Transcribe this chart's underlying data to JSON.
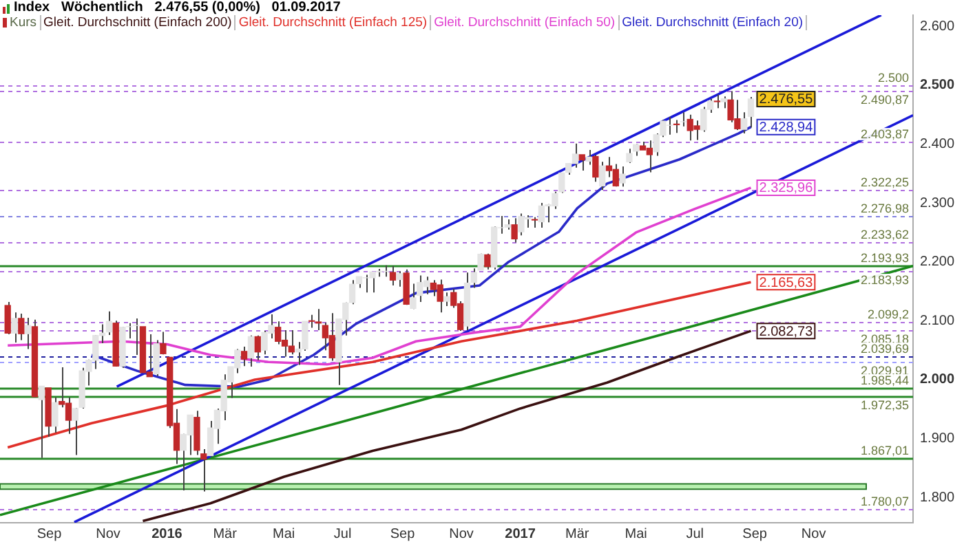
{
  "chart_data": {
    "type": "candlestick",
    "title": "Index   Wöchentlich   2.476,55 (0,00%)   01.09.2017",
    "legend": "top left",
    "grid": false,
    "xlim": [
      "2015-07-12",
      "2018-02-12"
    ],
    "xticks": [
      {
        "value": "2015-09",
        "label": "Sep"
      },
      {
        "value": "2015-11",
        "label": "Nov"
      },
      {
        "value": "2016",
        "label": "2016"
      },
      {
        "value": "2016-03",
        "label": "Mär"
      },
      {
        "value": "2016-05",
        "label": "Mai"
      },
      {
        "value": "2016-07",
        "label": "Jul"
      },
      {
        "value": "2016-09",
        "label": "Sep"
      },
      {
        "value": "2016-11",
        "label": "Nov"
      },
      {
        "value": "2017",
        "label": "2017"
      },
      {
        "value": "2017-03",
        "label": "Mär"
      },
      {
        "value": "2017-05",
        "label": "Mai"
      },
      {
        "value": "2017-07",
        "label": "Jul"
      },
      {
        "value": "2017-09",
        "label": "Sep"
      },
      {
        "value": "2017-11",
        "label": "Nov"
      }
    ],
    "ylim": [
      1757,
      2619
    ],
    "yticks": [
      {
        "value": 1800,
        "label": "1.800"
      },
      {
        "value": 1900,
        "label": "1.900"
      },
      {
        "value": 2000,
        "label": "2.000"
      },
      {
        "value": 2100,
        "label": "2.100"
      },
      {
        "value": 2200,
        "label": "2.200"
      },
      {
        "value": 2300,
        "label": "2.300"
      },
      {
        "value": 2400,
        "label": "2.400"
      },
      {
        "value": 2500,
        "label": "2.500"
      },
      {
        "value": 2600,
        "label": "2.600"
      }
    ],
    "annotations": [
      {
        "text": "2.476,55",
        "x": "2017-08-28",
        "y": 2476.55
      }
    ],
    "series": [
      {
        "type": "candlestick",
        "name": "Kurs",
        "x": [
          "2015-07-20",
          "2015-07-27",
          "2015-08-03",
          "2015-08-10",
          "2015-08-17",
          "2015-08-24",
          "2015-08-31",
          "2015-09-07",
          "2015-09-14",
          "2015-09-21",
          "2015-09-28",
          "2015-10-05",
          "2015-10-12",
          "2015-10-19",
          "2015-10-26",
          "2015-11-02",
          "2015-11-09",
          "2015-11-16",
          "2015-11-23",
          "2015-11-30",
          "2015-12-07",
          "2015-12-14",
          "2015-12-21",
          "2015-12-28",
          "2016-01-04",
          "2016-01-11",
          "2016-01-18",
          "2016-01-25",
          "2016-02-01",
          "2016-02-08",
          "2016-02-15",
          "2016-02-22",
          "2016-02-29",
          "2016-03-07",
          "2016-03-14",
          "2016-03-21",
          "2016-03-28",
          "2016-04-04",
          "2016-04-11",
          "2016-04-18",
          "2016-04-25",
          "2016-05-02",
          "2016-05-09",
          "2016-05-16",
          "2016-05-23",
          "2016-05-30",
          "2016-06-06",
          "2016-06-13",
          "2016-06-20",
          "2016-06-27",
          "2016-07-04",
          "2016-07-11",
          "2016-07-18",
          "2016-07-25",
          "2016-08-01",
          "2016-08-08",
          "2016-08-15",
          "2016-08-22",
          "2016-08-29",
          "2016-09-05",
          "2016-09-12",
          "2016-09-19",
          "2016-09-26",
          "2016-10-03",
          "2016-10-10",
          "2016-10-17",
          "2016-10-24",
          "2016-10-31",
          "2016-11-07",
          "2016-11-14",
          "2016-11-21",
          "2016-11-28",
          "2016-12-05",
          "2016-12-12",
          "2016-12-19",
          "2016-12-26",
          "2017-01-02",
          "2017-01-09",
          "2017-01-16",
          "2017-01-23",
          "2017-01-30",
          "2017-02-06",
          "2017-02-13",
          "2017-02-20",
          "2017-02-27",
          "2017-03-06",
          "2017-03-13",
          "2017-03-20",
          "2017-03-27",
          "2017-04-03",
          "2017-04-10",
          "2017-04-17",
          "2017-04-24",
          "2017-05-01",
          "2017-05-08",
          "2017-05-15",
          "2017-05-22",
          "2017-05-29",
          "2017-06-05",
          "2017-06-12",
          "2017-06-19",
          "2017-06-26",
          "2017-07-03",
          "2017-07-10",
          "2017-07-17",
          "2017-07-24",
          "2017-07-31",
          "2017-08-07",
          "2017-08-14",
          "2017-08-21",
          "2017-08-28"
        ],
        "ohlc": [
          [
            2126,
            2132,
            2077,
            2079
          ],
          [
            2079,
            2114,
            2063,
            2104
          ],
          [
            2104,
            2112,
            2067,
            2078
          ],
          [
            2078,
            2105,
            2052,
            2092
          ],
          [
            2090,
            2102,
            1970,
            1971
          ],
          [
            1966,
            1989,
            1867,
            1989
          ],
          [
            1986,
            1986,
            1903,
            1921
          ],
          [
            1921,
            1970,
            1910,
            1961
          ],
          [
            1963,
            2021,
            1953,
            1958
          ],
          [
            1960,
            1970,
            1908,
            1931
          ],
          [
            1931,
            1952,
            1872,
            1951
          ],
          [
            1953,
            2020,
            1951,
            2015
          ],
          [
            2014,
            2034,
            1990,
            2033
          ],
          [
            2033,
            2076,
            2018,
            2075
          ],
          [
            2075,
            2094,
            2062,
            2079
          ],
          [
            2081,
            2116,
            2076,
            2099
          ],
          [
            2096,
            2100,
            2022,
            2023
          ],
          [
            2023,
            2090,
            2020,
            2089
          ],
          [
            2090,
            2096,
            2070,
            2090
          ],
          [
            2092,
            2104,
            2042,
            2092
          ],
          [
            2090,
            2090,
            2012,
            2012
          ],
          [
            2013,
            2077,
            2005,
            2005
          ],
          [
            2010,
            2067,
            2006,
            2061
          ],
          [
            2061,
            2081,
            2043,
            2044
          ],
          [
            2038,
            2038,
            1918,
            1922
          ],
          [
            1926,
            1950,
            1857,
            1880
          ],
          [
            1880,
            1908,
            1812,
            1907
          ],
          [
            1906,
            1940,
            1872,
            1940
          ],
          [
            1936,
            1947,
            1872,
            1880
          ],
          [
            1874,
            1882,
            1810,
            1865
          ],
          [
            1871,
            1930,
            1869,
            1918
          ],
          [
            1917,
            1951,
            1891,
            1948
          ],
          [
            1947,
            2009,
            1931,
            1999
          ],
          [
            1996,
            2022,
            1969,
            2022
          ],
          [
            2020,
            2052,
            2011,
            2050
          ],
          [
            2048,
            2056,
            2023,
            2035
          ],
          [
            2037,
            2075,
            2022,
            2073
          ],
          [
            2073,
            2075,
            2033,
            2047
          ],
          [
            2050,
            2083,
            2043,
            2080
          ],
          [
            2079,
            2111,
            2070,
            2092
          ],
          [
            2089,
            2099,
            2060,
            2065
          ],
          [
            2067,
            2084,
            2039,
            2057
          ],
          [
            2057,
            2084,
            2043,
            2047
          ],
          [
            2047,
            2064,
            2025,
            2052
          ],
          [
            2052,
            2099,
            2049,
            2099
          ],
          [
            2100,
            2110,
            2088,
            2099
          ],
          [
            2098,
            2120,
            2084,
            2096
          ],
          [
            2092,
            2097,
            2050,
            2071
          ],
          [
            2075,
            2113,
            2032,
            2037
          ],
          [
            2030,
            2103,
            1991,
            2103
          ],
          [
            2102,
            2131,
            2075,
            2130
          ],
          [
            2131,
            2169,
            2128,
            2162
          ],
          [
            2163,
            2175,
            2156,
            2175
          ],
          [
            2173,
            2178,
            2148,
            2173
          ],
          [
            2173,
            2183,
            2148,
            2183
          ],
          [
            2183,
            2188,
            2175,
            2184
          ],
          [
            2184,
            2194,
            2175,
            2184
          ],
          [
            2182,
            2193,
            2160,
            2169
          ],
          [
            2170,
            2184,
            2158,
            2180
          ],
          [
            2181,
            2187,
            2127,
            2128
          ],
          [
            2121,
            2163,
            2120,
            2139
          ],
          [
            2143,
            2177,
            2132,
            2165
          ],
          [
            2158,
            2175,
            2145,
            2168
          ],
          [
            2164,
            2169,
            2142,
            2153
          ],
          [
            2161,
            2170,
            2114,
            2133
          ],
          [
            2133,
            2148,
            2125,
            2141
          ],
          [
            2148,
            2154,
            2122,
            2126
          ],
          [
            2129,
            2133,
            2083,
            2085
          ],
          [
            2091,
            2182,
            2084,
            2164
          ],
          [
            2165,
            2189,
            2156,
            2182
          ],
          [
            2186,
            2214,
            2186,
            2213
          ],
          [
            2212,
            2214,
            2187,
            2192
          ],
          [
            2191,
            2260,
            2187,
            2259
          ],
          [
            2258,
            2278,
            2248,
            2258
          ],
          [
            2259,
            2272,
            2255,
            2263
          ],
          [
            2263,
            2274,
            2233,
            2239
          ],
          [
            2251,
            2282,
            2245,
            2277
          ],
          [
            2273,
            2279,
            2258,
            2275
          ],
          [
            2272,
            2276,
            2258,
            2271
          ],
          [
            2268,
            2300,
            2258,
            2295
          ],
          [
            2295,
            2298,
            2267,
            2297
          ],
          [
            2295,
            2319,
            2290,
            2316
          ],
          [
            2319,
            2351,
            2317,
            2351
          ],
          [
            2352,
            2367,
            2348,
            2367
          ],
          [
            2367,
            2401,
            2360,
            2383
          ],
          [
            2382,
            2382,
            2355,
            2373
          ],
          [
            2371,
            2390,
            2365,
            2378
          ],
          [
            2379,
            2382,
            2336,
            2344
          ],
          [
            2329,
            2370,
            2322,
            2363
          ],
          [
            2363,
            2378,
            2344,
            2355
          ],
          [
            2357,
            2366,
            2328,
            2329
          ],
          [
            2334,
            2362,
            2328,
            2349
          ],
          [
            2370,
            2392,
            2368,
            2384
          ],
          [
            2388,
            2400,
            2380,
            2399
          ],
          [
            2397,
            2404,
            2390,
            2390
          ],
          [
            2393,
            2406,
            2352,
            2382
          ],
          [
            2387,
            2418,
            2380,
            2416
          ],
          [
            2415,
            2441,
            2412,
            2439
          ],
          [
            2432,
            2446,
            2416,
            2432
          ],
          [
            2434,
            2441,
            2419,
            2433
          ],
          [
            2438,
            2454,
            2430,
            2438
          ],
          [
            2442,
            2450,
            2406,
            2423
          ],
          [
            2431,
            2440,
            2407,
            2425
          ],
          [
            2424,
            2463,
            2421,
            2459
          ],
          [
            2459,
            2477,
            2453,
            2473
          ],
          [
            2473,
            2484,
            2461,
            2472
          ],
          [
            2472,
            2481,
            2461,
            2477
          ],
          [
            2475,
            2490,
            2437,
            2441
          ],
          [
            2443,
            2475,
            2424,
            2426
          ],
          [
            2425,
            2454,
            2418,
            2443
          ],
          [
            2447,
            2480,
            2428,
            2476.55
          ]
        ],
        "colors": [
          "#c0282a",
          "#e4e4e4",
          "#c0282a",
          "#e4e4e4",
          "#c0282a",
          "#e4e4e4",
          "#c0282a",
          "#e4e4e4",
          "#c0282a",
          "#c0282a",
          "#e4e4e4",
          "#e4e4e4",
          "#e4e4e4",
          "#e4e4e4",
          "#e4e4e4",
          "#e4e4e4",
          "#c0282a",
          "#e4e4e4",
          "#e4e4e4",
          "#e4e4e4",
          "#c0282a",
          "#c0282a",
          "#e4e4e4",
          "#c0282a",
          "#c0282a",
          "#c0282a",
          "#e4e4e4",
          "#e4e4e4",
          "#c0282a",
          "#c0282a",
          "#e4e4e4",
          "#e4e4e4",
          "#e4e4e4",
          "#e4e4e4",
          "#e4e4e4",
          "#c0282a",
          "#e4e4e4",
          "#c0282a",
          "#e4e4e4",
          "#e4e4e4",
          "#c0282a",
          "#c0282a",
          "#c0282a",
          "#e4e4e4",
          "#e4e4e4",
          "#c0282a",
          "#c0282a",
          "#c0282a",
          "#c0282a",
          "#e4e4e4",
          "#e4e4e4",
          "#e4e4e4",
          "#e4e4e4",
          "#e4e4e4",
          "#e4e4e4",
          "#e4e4e4",
          "#e4e4e4",
          "#c0282a",
          "#e4e4e4",
          "#c0282a",
          "#e4e4e4",
          "#e4e4e4",
          "#e4e4e4",
          "#c0282a",
          "#c0282a",
          "#e4e4e4",
          "#c0282a",
          "#c0282a",
          "#e4e4e4",
          "#e4e4e4",
          "#e4e4e4",
          "#c0282a",
          "#e4e4e4",
          "#e4e4e4",
          "#e4e4e4",
          "#c0282a",
          "#e4e4e4",
          "#e4e4e4",
          "#c0282a",
          "#e4e4e4",
          "#e4e4e4",
          "#e4e4e4",
          "#e4e4e4",
          "#e4e4e4",
          "#e4e4e4",
          "#c0282a",
          "#e4e4e4",
          "#c0282a",
          "#e4e4e4",
          "#c0282a",
          "#c0282a",
          "#e4e4e4",
          "#e4e4e4",
          "#e4e4e4",
          "#c0282a",
          "#c0282a",
          "#e4e4e4",
          "#e4e4e4",
          "#e4e4e4",
          "#c0282a",
          "#e4e4e4",
          "#c0282a",
          "#c0282a",
          "#e4e4e4",
          "#e4e4e4",
          "#c0282a",
          "#e4e4e4",
          "#c0282a",
          "#c0282a",
          "#e4e4e4",
          "#e4e4e4"
        ]
      },
      {
        "type": "line",
        "name": "Gleit. Durchschnitt (Einfach 200)",
        "color": "#3a1010",
        "x": [
          "2015-12-07",
          "2016-02-15",
          "2016-05-01",
          "2016-08-01",
          "2016-11-01",
          "2017-01-01",
          "2017-04-01",
          "2017-06-15",
          "2017-08-28"
        ],
        "values": [
          1760,
          1790,
          1835,
          1879,
          1915,
          1951,
          1995,
          2040,
          2082.73
        ],
        "value_labels": [
          null,
          null,
          null,
          null,
          null,
          null,
          null,
          null,
          "2.082,73"
        ]
      },
      {
        "type": "line",
        "name": "Gleit. Durchschnitt (Einfach 125)",
        "color": "#e0302a",
        "x": [
          "2015-07-20",
          "2015-10-15",
          "2016-01-01",
          "2016-04-01",
          "2016-08-01",
          "2016-11-01",
          "2017-03-01",
          "2017-08-28"
        ],
        "values": [
          1885,
          1926,
          1956,
          2000,
          2030,
          2065,
          2100,
          2165.63
        ],
        "value_labels": [
          null,
          null,
          null,
          null,
          null,
          null,
          null,
          "2.165,63"
        ]
      },
      {
        "type": "line",
        "name": "Gleit. Durchschnitt (Einfach 50)",
        "color": "#e040d0",
        "x": [
          "2015-07-20",
          "2015-11-15",
          "2016-01-01",
          "2016-02-15",
          "2016-04-15",
          "2016-06-15",
          "2016-08-01",
          "2016-09-15",
          "2016-11-15",
          "2017-01-01",
          "2017-03-01",
          "2017-05-01",
          "2017-07-01",
          "2017-08-28"
        ],
        "values": [
          2058,
          2065,
          2060,
          2042,
          2030,
          2026,
          2037,
          2065,
          2080,
          2090,
          2180,
          2250,
          2290,
          2325.96
        ],
        "value_labels": [
          null,
          null,
          null,
          null,
          null,
          null,
          null,
          null,
          null,
          null,
          null,
          null,
          null,
          "2.325,96"
        ]
      },
      {
        "type": "line",
        "name": "Gleit. Durchschnitt (Einfach 20)",
        "color": "#2a2ac8",
        "x": [
          "2015-10-15",
          "2015-12-01",
          "2016-01-20",
          "2016-03-15",
          "2016-04-15",
          "2016-06-01",
          "2016-07-15",
          "2016-09-15",
          "2016-11-20",
          "2016-12-20",
          "2017-02-10",
          "2017-03-01",
          "2017-04-01",
          "2017-06-15",
          "2017-08-15",
          "2017-08-28"
        ],
        "values": [
          2042,
          2015,
          1991,
          1988,
          2000,
          2042,
          2095,
          2147,
          2160,
          2200,
          2251,
          2291,
          2333,
          2374,
          2418,
          2428.94
        ],
        "value_labels": [
          null,
          null,
          null,
          null,
          null,
          null,
          null,
          null,
          null,
          null,
          null,
          null,
          null,
          null,
          null,
          "2.428,94"
        ]
      },
      {
        "type": "line",
        "color": "#1a1ad8",
        "x": [
          "2015-11-10",
          "2018-01-10"
        ],
        "values": [
          1988,
          2619
        ]
      },
      {
        "type": "line",
        "color": "#1a1ad8",
        "x": [
          "2015-09-27",
          "2018-02-12"
        ],
        "values": [
          1758,
          2449
        ]
      },
      {
        "type": "line",
        "color": "#1a8a1a",
        "x": [
          "2015-07-12",
          "2018-02-12"
        ],
        "values": [
          1770,
          2193
        ]
      }
    ],
    "ref_lines": [
      {
        "axis": "y",
        "value": 2500,
        "label": "2.500",
        "color": "#b070e0",
        "line_style": "dashed"
      },
      {
        "axis": "y",
        "value": 2490.87,
        "label": "2.490,87",
        "color": "#b070e0",
        "line_style": "dashed"
      },
      {
        "axis": "y",
        "value": 2403.87,
        "label": "2.403,87",
        "color": "#b070e0",
        "line_style": "dashed"
      },
      {
        "axis": "y",
        "value": 2322.25,
        "label": "2.322,25",
        "color": "#b070e0",
        "line_style": "dashed"
      },
      {
        "axis": "y",
        "value": 2276.98,
        "label": "2.276,98",
        "color": "#8080e0",
        "line_style": "dashed"
      },
      {
        "axis": "y",
        "value": 2233.62,
        "label": "2.233,62",
        "color": "#b070e0",
        "line_style": "dashed"
      },
      {
        "axis": "y",
        "value": 2193.93,
        "label": "2.193,93",
        "color": "#2a8a2a",
        "line_style": "solid"
      },
      {
        "axis": "y",
        "value": 2183.93,
        "label": "2.183,93",
        "color": "#b070e0",
        "line_style": "dashed"
      },
      {
        "axis": "y",
        "value": 2099.2,
        "label": "2.099,2",
        "color": "#b070e0",
        "line_style": "dashed"
      },
      {
        "axis": "y",
        "value": 2085.18,
        "label": "2.085,18",
        "color": "#b070e0",
        "line_style": "dashed"
      },
      {
        "axis": "y",
        "value": 2039.69,
        "label": "2.039,69",
        "color": "#2020a0",
        "line_style": "dashed"
      },
      {
        "axis": "y",
        "value": 2029.91,
        "label": "2.029,91",
        "color": "#a0a0ff",
        "line_style": "dashed"
      },
      {
        "axis": "y",
        "value": 1985.44,
        "label": "1.985,44",
        "color": "#2a8a2a",
        "line_style": "solid"
      },
      {
        "axis": "y",
        "value": 1972.35,
        "label": "1.972,35",
        "color": "#2a8a2a",
        "line_style": "solid"
      },
      {
        "axis": "y",
        "value": 1867.01,
        "label": "1.867,01",
        "color": "#2a8a2a",
        "line_style": "solid"
      },
      {
        "axis": "y",
        "value": 1780.07,
        "label": "1.780,07",
        "color": "#b070e0",
        "line_style": "dashed"
      }
    ],
    "bands": [
      {
        "axis": "y",
        "from": 1814,
        "to": 1823,
        "color": "#b8f0b0"
      }
    ]
  }
}
